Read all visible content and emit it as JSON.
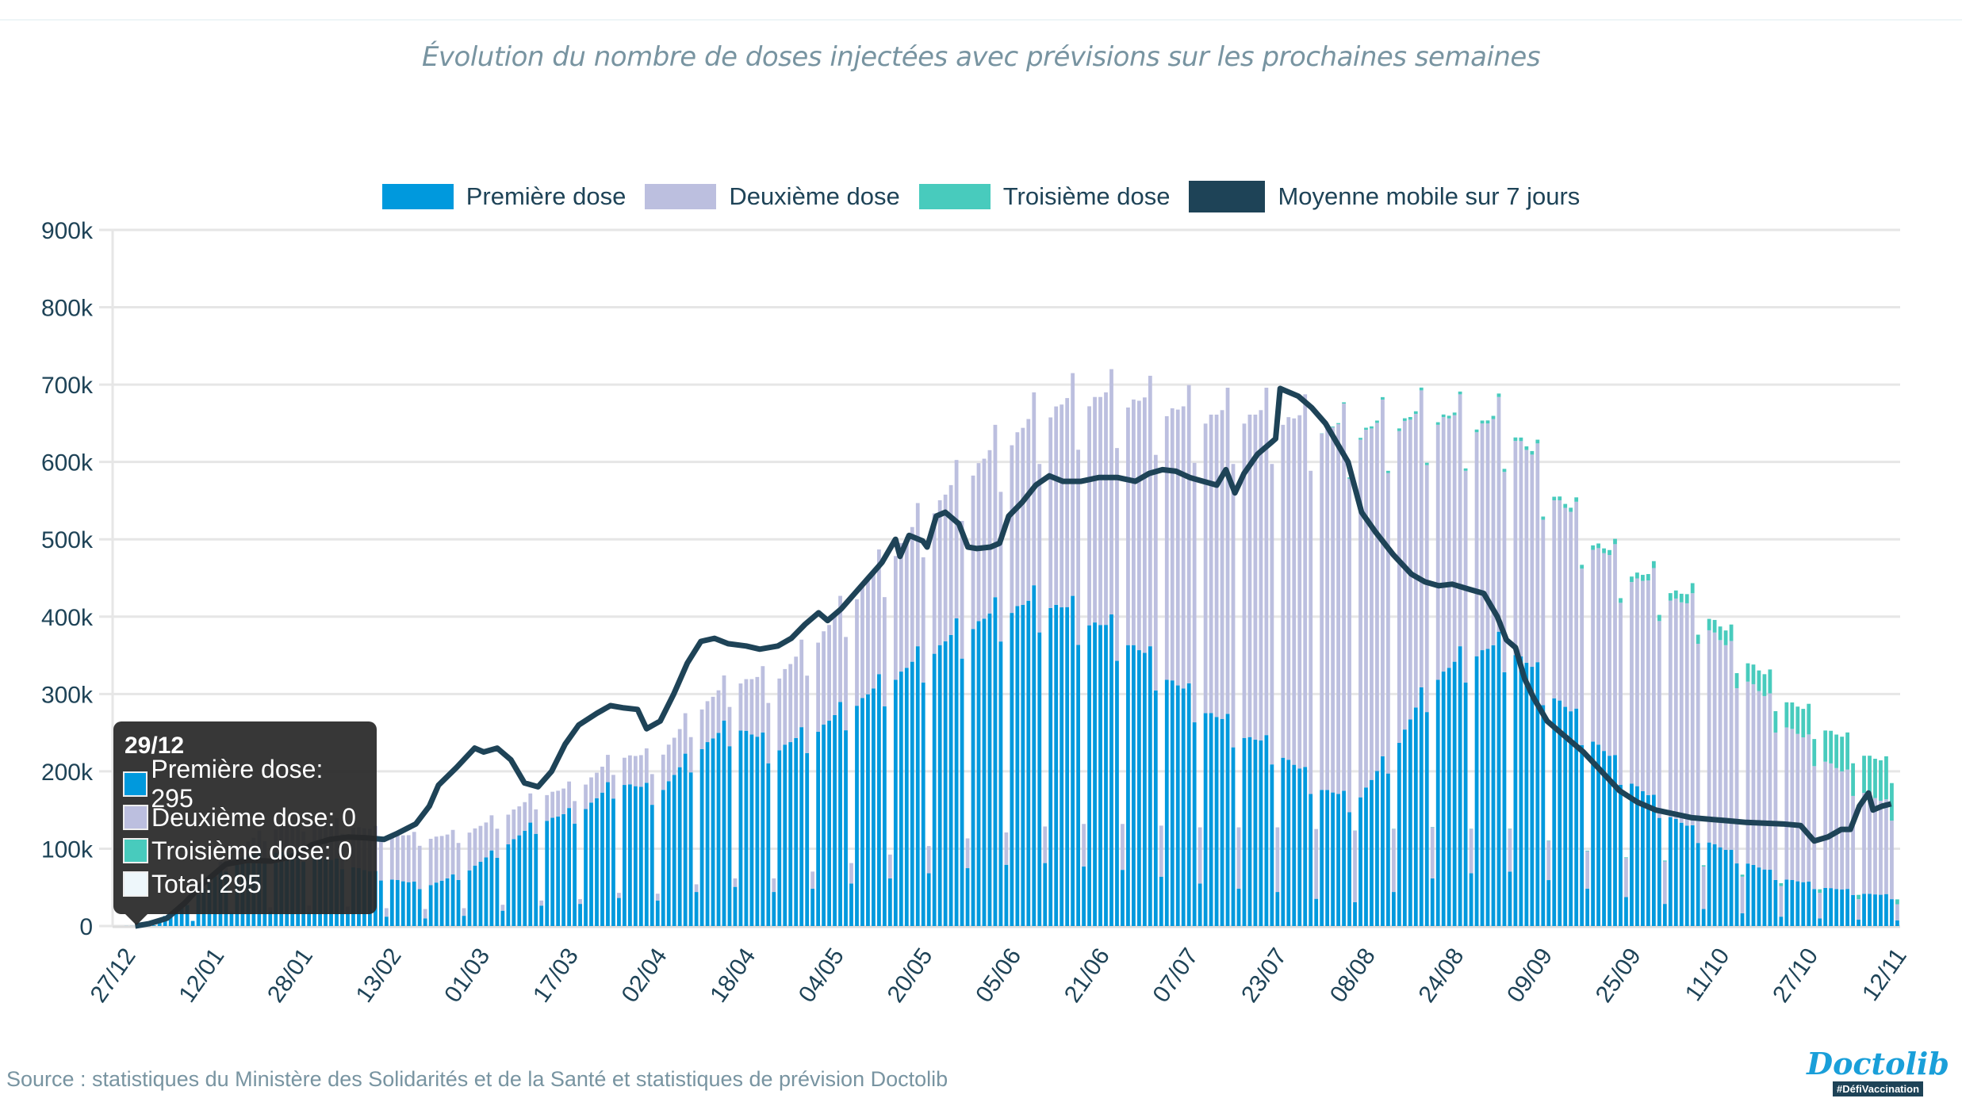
{
  "title": "Évolution du nombre de doses injectées avec prévisions sur les prochaines semaines",
  "legend": [
    {
      "label": "Première dose",
      "color": "#0099dd"
    },
    {
      "label": "Deuxième dose",
      "color": "#bcbfdf"
    },
    {
      "label": "Troisième dose",
      "color": "#48cbbd"
    },
    {
      "label": "Moyenne mobile sur 7 jours",
      "color": "#1e4357"
    }
  ],
  "tooltip": {
    "date": "29/12",
    "rows": [
      {
        "label": "Première dose: 295",
        "color": "#0099dd"
      },
      {
        "label": "Deuxième dose: 0",
        "color": "#bcbfdf"
      },
      {
        "label": "Troisième dose: 0",
        "color": "#48cbbd"
      },
      {
        "label": "Total: 295",
        "color": "#eef7fb"
      }
    ]
  },
  "source": "Source : statistiques du Ministère des Solidarités et de la Santé et statistiques de prévision Doctolib",
  "logo": {
    "word": "Doctolib",
    "tag": "#DéfiVaccination"
  },
  "chart_data": {
    "type": "bar",
    "stacked": true,
    "title": "Évolution du nombre de doses injectées avec prévisions sur les prochaines semaines",
    "xlabel": "",
    "ylabel": "",
    "ylim": [
      0,
      900000
    ],
    "yticks": [
      "0",
      "100k",
      "200k",
      "300k",
      "400k",
      "500k",
      "600k",
      "700k",
      "800k",
      "900k"
    ],
    "ytick_values": [
      0,
      100000,
      200000,
      300000,
      400000,
      500000,
      600000,
      700000,
      800000,
      900000
    ],
    "xticks": [
      "27/12",
      "12/01",
      "28/01",
      "13/02",
      "01/03",
      "17/03",
      "02/04",
      "18/04",
      "04/05",
      "20/05",
      "05/06",
      "21/06",
      "07/07",
      "23/07",
      "08/08",
      "24/08",
      "09/09",
      "25/09",
      "11/10",
      "27/10",
      "12/11"
    ],
    "xtick_interval_days": 16,
    "start_date": "27/12",
    "days": 323,
    "grid": true,
    "legend_position": "top",
    "units": "thousands of doses per day",
    "weekday_factors_from_sunday": [
      0.22,
      1.12,
      1.14,
      1.14,
      1.15,
      1.2,
      1.03
    ],
    "weekly_first_dose_k": [
      0.5,
      4,
      30,
      75,
      85,
      80,
      70,
      55,
      45,
      60,
      90,
      120,
      130,
      165,
      150,
      200,
      230,
      200,
      220,
      250,
      280,
      310,
      340,
      360,
      370,
      350,
      330,
      290,
      250,
      220,
      200,
      160,
      140,
      200,
      280,
      310,
      320,
      270,
      220,
      170,
      130,
      100,
      75,
      55,
      45,
      38,
      33,
      30,
      28,
      26,
      26,
      24,
      22,
      20,
      19,
      18,
      17
    ],
    "weekly_second_dose_k": [
      0,
      0,
      0,
      10,
      25,
      40,
      45,
      50,
      55,
      45,
      35,
      30,
      28,
      30,
      40,
      45,
      50,
      80,
      100,
      120,
      140,
      160,
      175,
      190,
      215,
      250,
      270,
      300,
      330,
      360,
      380,
      410,
      420,
      370,
      300,
      260,
      250,
      230,
      220,
      230,
      250,
      250,
      215,
      180,
      150,
      120,
      95,
      80,
      70,
      62,
      58,
      52,
      48,
      45,
      43,
      42,
      40
    ],
    "weekly_third_dose_k": [
      0,
      0,
      0,
      0,
      0,
      0,
      0,
      0,
      0,
      0,
      0,
      0,
      0,
      0,
      0,
      0,
      0,
      0,
      0,
      0,
      0,
      0,
      0,
      0,
      0,
      0,
      0,
      0,
      0,
      0,
      0,
      0,
      2,
      3,
      3,
      3,
      4,
      4,
      5,
      6,
      8,
      12,
      20,
      28,
      35,
      42,
      48,
      50,
      52,
      54,
      56,
      58,
      60,
      60,
      62,
      75,
      95
    ],
    "moving_average": {
      "name": "Moyenne mobile sur 7 jours",
      "points": [
        [
          5,
          0
        ],
        [
          8,
          3
        ],
        [
          12,
          10
        ],
        [
          16,
          30
        ],
        [
          20,
          55
        ],
        [
          25,
          80
        ],
        [
          30,
          85
        ],
        [
          35,
          84
        ],
        [
          40,
          90
        ],
        [
          44,
          105
        ],
        [
          48,
          112
        ],
        [
          52,
          115
        ],
        [
          56,
          114
        ],
        [
          60,
          112
        ],
        [
          63,
          120
        ],
        [
          67,
          132
        ],
        [
          70,
          155
        ],
        [
          72,
          182
        ],
        [
          76,
          205
        ],
        [
          80,
          230
        ],
        [
          82,
          225
        ],
        [
          85,
          230
        ],
        [
          88,
          215
        ],
        [
          91,
          185
        ],
        [
          94,
          180
        ],
        [
          97,
          200
        ],
        [
          100,
          235
        ],
        [
          103,
          260
        ],
        [
          107,
          275
        ],
        [
          110,
          285
        ],
        [
          113,
          282
        ],
        [
          116,
          280
        ],
        [
          118,
          255
        ],
        [
          121,
          265
        ],
        [
          124,
          300
        ],
        [
          127,
          340
        ],
        [
          130,
          368
        ],
        [
          133,
          372
        ],
        [
          136,
          365
        ],
        [
          140,
          362
        ],
        [
          143,
          358
        ],
        [
          147,
          362
        ],
        [
          150,
          372
        ],
        [
          153,
          390
        ],
        [
          156,
          405
        ],
        [
          158,
          395
        ],
        [
          161,
          410
        ],
        [
          164,
          430
        ],
        [
          167,
          450
        ],
        [
          170,
          470
        ],
        [
          173,
          500
        ],
        [
          174,
          478
        ],
        [
          176,
          505
        ],
        [
          179,
          498
        ],
        [
          180,
          490
        ],
        [
          182,
          530
        ],
        [
          184,
          535
        ],
        [
          187,
          520
        ],
        [
          189,
          490
        ],
        [
          191,
          488
        ],
        [
          194,
          490
        ],
        [
          196,
          495
        ],
        [
          198,
          530
        ],
        [
          201,
          548
        ],
        [
          204,
          570
        ],
        [
          207,
          582
        ],
        [
          210,
          575
        ],
        [
          214,
          575
        ],
        [
          218,
          580
        ],
        [
          222,
          580
        ],
        [
          226,
          575
        ],
        [
          229,
          585
        ],
        [
          232,
          590
        ],
        [
          235,
          588
        ],
        [
          238,
          580
        ],
        [
          241,
          575
        ],
        [
          244,
          570
        ],
        [
          246,
          590
        ],
        [
          248,
          560
        ],
        [
          250,
          585
        ],
        [
          253,
          610
        ],
        [
          256,
          625
        ],
        [
          257,
          630
        ],
        [
          258,
          695
        ],
        [
          262,
          685
        ],
        [
          265,
          670
        ],
        [
          268,
          650
        ],
        [
          271,
          620
        ],
        [
          273,
          600
        ],
        [
          276,
          535
        ],
        [
          279,
          510
        ],
        [
          283,
          480
        ],
        [
          287,
          455
        ],
        [
          290,
          445
        ],
        [
          293,
          440
        ],
        [
          296,
          442
        ],
        [
          300,
          435
        ],
        [
          303,
          430
        ],
        [
          306,
          400
        ],
        [
          308,
          370
        ],
        [
          310,
          360
        ],
        [
          312,
          320
        ],
        [
          314,
          295
        ],
        [
          317,
          265
        ],
        [
          321,
          245
        ],
        [
          325,
          225
        ],
        [
          329,
          200
        ],
        [
          333,
          175
        ],
        [
          337,
          160
        ],
        [
          341,
          150
        ],
        [
          345,
          145
        ],
        [
          349,
          140
        ],
        [
          353,
          138
        ],
        [
          357,
          136
        ],
        [
          361,
          134
        ],
        [
          365,
          133
        ],
        [
          369,
          132
        ],
        [
          373,
          130
        ],
        [
          376,
          110
        ],
        [
          379,
          115
        ],
        [
          382,
          125
        ],
        [
          384,
          125
        ],
        [
          386,
          155
        ],
        [
          388,
          172
        ],
        [
          389,
          150
        ],
        [
          391,
          155
        ],
        [
          393,
          158
        ]
      ],
      "x_scale_note": "points are [position along x-axis in days×(323/395), value in thousands]"
    }
  }
}
